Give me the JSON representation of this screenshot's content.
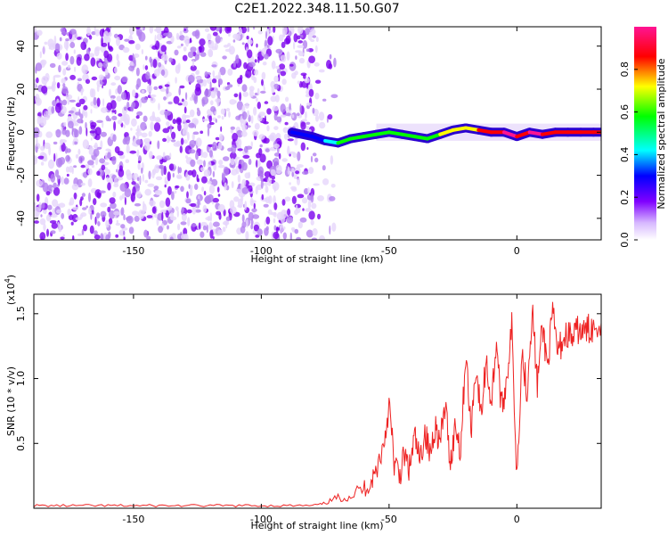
{
  "chart_data": [
    {
      "type": "heatmap",
      "title": "C2E1.2022.348.11.50.G07",
      "xlabel": "Height of straight line (km)",
      "ylabel": "Frequency (Hz)",
      "xlim": [
        -189,
        33
      ],
      "ylim": [
        -50,
        49
      ],
      "xticks": [
        "-150",
        "-100",
        "-50",
        "0"
      ],
      "xtick_values": [
        -150,
        -100,
        -50,
        0
      ],
      "yticks": [
        "40",
        "20",
        "0",
        "-20",
        "-40"
      ],
      "ytick_values": [
        40,
        20,
        0,
        -20,
        -40
      ],
      "colorbar": {
        "label": "Normalized spectral amplitude",
        "range": [
          0,
          1
        ],
        "ticks": [
          "0.0",
          "0.2",
          "0.4",
          "0.6",
          "0.8"
        ],
        "tick_values": [
          0,
          0.2,
          0.4,
          0.6,
          0.8
        ],
        "colors": [
          "#ffffff",
          "#8000ff",
          "#0000ff",
          "#00ffff",
          "#00ff00",
          "#ffff00",
          "#ff0000",
          "#ff0080"
        ]
      },
      "signal_track": {
        "x": [
          -88,
          -80,
          -75,
          -70,
          -65,
          -60,
          -55,
          -50,
          -45,
          -40,
          -35,
          -30,
          -25,
          -20,
          -15,
          -10,
          -5,
          0,
          5,
          10,
          15,
          20,
          25,
          30,
          33
        ],
        "y": [
          0,
          -2,
          -4,
          -5,
          -3,
          -2,
          -1,
          0,
          -1,
          -2,
          -3,
          -1,
          1,
          2,
          1,
          0,
          0,
          -2,
          0,
          -1,
          0,
          0,
          0,
          0,
          0
        ],
        "amplitude": [
          0.25,
          0.35,
          0.45,
          0.5,
          0.55,
          0.55,
          0.5,
          0.6,
          0.5,
          0.55,
          0.6,
          0.7,
          0.75,
          0.75,
          0.8,
          0.85,
          0.95,
          0.9,
          0.95,
          0.9,
          0.8,
          0.85,
          0.8,
          0.8,
          0.8
        ]
      },
      "grid": false
    },
    {
      "type": "line",
      "title": "",
      "xlabel": "Height of straight line (km)",
      "ylabel": "SNR (10 * v/v)",
      "y_multiplier": "(x10",
      "y_multiplier_exp": "4",
      "y_multiplier_close": ")",
      "xlim": [
        -189,
        33
      ],
      "ylim": [
        0,
        1.65
      ],
      "xticks": [
        "-150",
        "-100",
        "-50",
        "0"
      ],
      "xtick_values": [
        -150,
        -100,
        -50,
        0
      ],
      "yticks": [
        "0.5",
        "1.0",
        "1.5"
      ],
      "ytick_values": [
        0.5,
        1.0,
        1.5
      ],
      "grid": false,
      "series": [
        {
          "color": "#ee2222",
          "x": [
            -189,
            -180,
            -170,
            -160,
            -150,
            -140,
            -130,
            -120,
            -110,
            -100,
            -90,
            -80,
            -75,
            -70,
            -65,
            -60,
            -57,
            -55,
            -52,
            -50,
            -48,
            -46,
            -44,
            -42,
            -40,
            -38,
            -36,
            -34,
            -32,
            -30,
            -28,
            -26,
            -24,
            -22,
            -20,
            -18,
            -16,
            -14,
            -12,
            -10,
            -8,
            -6,
            -4,
            -2,
            0,
            2,
            4,
            6,
            8,
            10,
            12,
            14,
            16,
            18,
            20,
            22,
            24,
            26,
            28,
            30,
            33
          ],
          "y": [
            0.02,
            0.02,
            0.02,
            0.02,
            0.02,
            0.02,
            0.02,
            0.02,
            0.02,
            0.02,
            0.02,
            0.02,
            0.04,
            0.08,
            0.1,
            0.15,
            0.2,
            0.3,
            0.5,
            0.8,
            0.35,
            0.25,
            0.4,
            0.3,
            0.55,
            0.35,
            0.6,
            0.4,
            0.65,
            0.5,
            0.8,
            0.35,
            0.65,
            0.45,
            1.2,
            0.6,
            1.1,
            0.7,
            1.15,
            0.8,
            1.3,
            0.75,
            1.0,
            1.4,
            0.25,
            1.2,
            0.9,
            1.55,
            0.95,
            1.4,
            1.1,
            1.5,
            1.2,
            1.3,
            1.35,
            1.3,
            1.38,
            1.35,
            1.38,
            1.4,
            1.43
          ]
        }
      ]
    }
  ]
}
